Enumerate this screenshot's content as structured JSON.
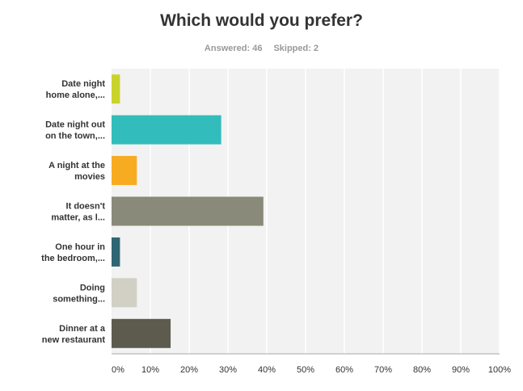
{
  "header": {
    "title": "Which would you prefer?",
    "answered": "Answered: 46",
    "skipped": "Skipped: 2"
  },
  "chart_data": {
    "type": "bar",
    "orientation": "horizontal",
    "categories": [
      [
        "Date night",
        "home alone,..."
      ],
      [
        "Date night out",
        "on the town,..."
      ],
      [
        "A night at the",
        "movies"
      ],
      [
        "It doesn't",
        "matter, as l..."
      ],
      [
        "One hour in",
        "the bedroom,..."
      ],
      [
        "Doing",
        "something..."
      ],
      [
        "Dinner at a",
        "new restaurant"
      ]
    ],
    "values": [
      2.17,
      28.26,
      6.52,
      39.13,
      2.17,
      6.52,
      15.22
    ],
    "colors": [
      "#c8d32c",
      "#33bcbc",
      "#f7ab21",
      "#8a8a7a",
      "#2f6673",
      "#d1d0c4",
      "#5c5b4d"
    ],
    "xlim": [
      0,
      100
    ],
    "xticks": [
      0,
      10,
      20,
      30,
      40,
      50,
      60,
      70,
      80,
      90,
      100
    ],
    "xtick_labels": [
      "0%",
      "10%",
      "20%",
      "30%",
      "40%",
      "50%",
      "60%",
      "70%",
      "80%",
      "90%",
      "100%"
    ],
    "grid": true,
    "background": "#f2f2f2",
    "grid_color": "#ffffff"
  }
}
